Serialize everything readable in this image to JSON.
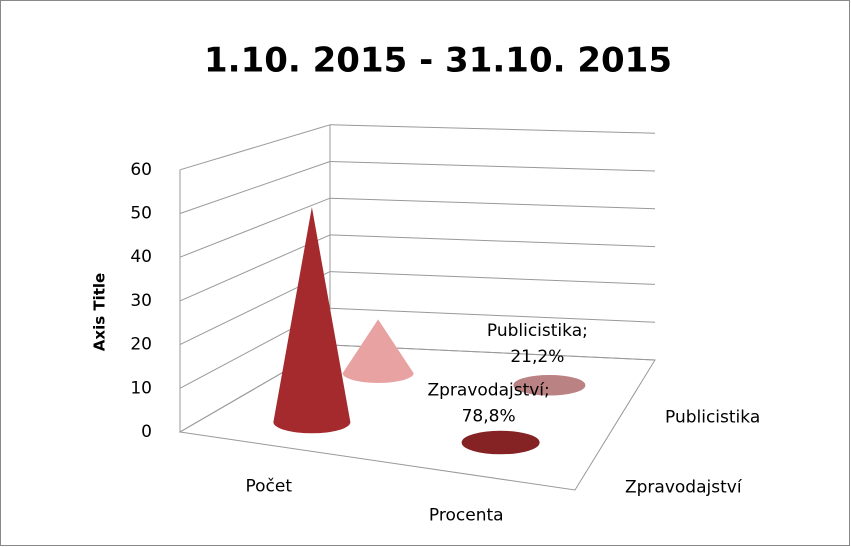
{
  "chart_data": {
    "type": "cone3d",
    "title": "1.10. 2015 - 31.10. 2015",
    "y_axis_title": "Axis Title",
    "categories": [
      "Počet",
      "Procenta"
    ],
    "series": [
      {
        "name": "Zpravodajství",
        "color": "#a52a2d",
        "values": [
          52,
          0.788
        ],
        "value_labels": [
          null,
          "Zpravodajství; 78,8%"
        ]
      },
      {
        "name": "Publicistika",
        "color": "#e8a2a2",
        "values": [
          14,
          0.212
        ],
        "value_labels": [
          null,
          "Publicistika; 21,2%"
        ]
      }
    ],
    "ylim": [
      0,
      60
    ],
    "yticks": [
      0,
      10,
      20,
      30,
      40,
      50,
      60
    ],
    "grid": true
  }
}
